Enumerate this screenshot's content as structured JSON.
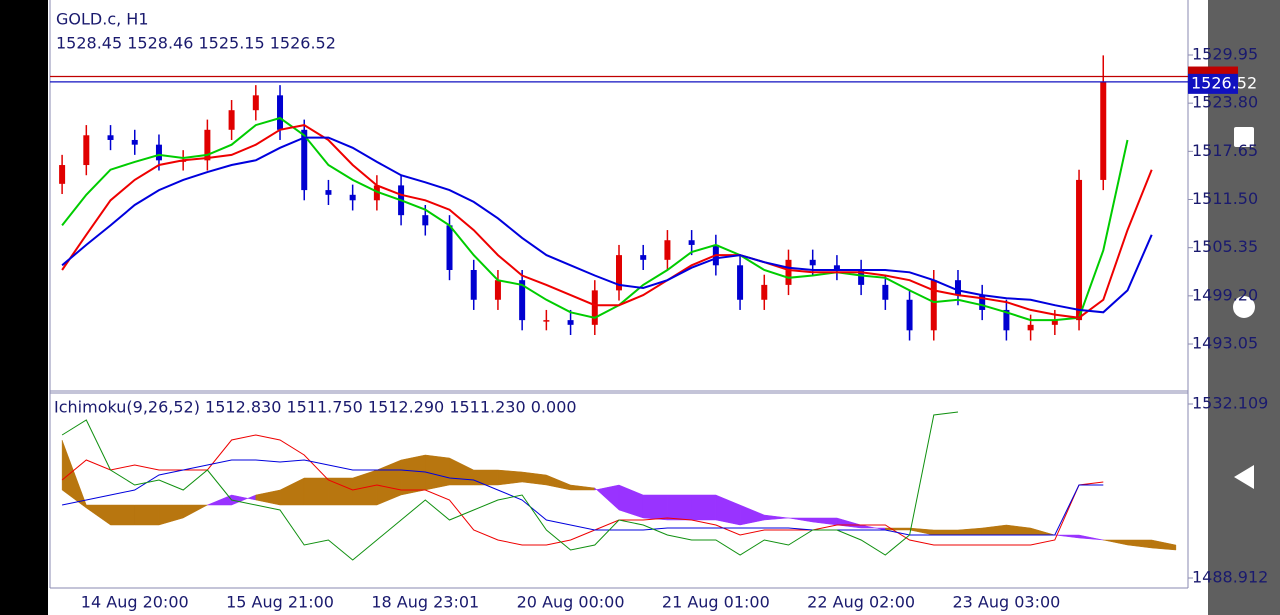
{
  "chart_data": [
    {
      "type": "candlestick",
      "symbol_title": "GOLD.c, H1",
      "ohlc_text": "1528.45 1528.46 1525.15 1526.52",
      "categories": [
        null,
        null,
        null,
        "14 Aug 20:00",
        null,
        null,
        null,
        null,
        null,
        "15 Aug 21:00",
        null,
        null,
        null,
        null,
        null,
        "18 Aug 23:01",
        null,
        null,
        null,
        null,
        null,
        "20 Aug 00:00",
        null,
        null,
        null,
        null,
        null,
        "21 Aug 01:00",
        null,
        null,
        null,
        null,
        null,
        "22 Aug 02:00",
        null,
        null,
        null,
        null,
        null,
        "23 Aug 03:00",
        null,
        null,
        null,
        null,
        null,
        null,
        null
      ],
      "open": [
        1513.5,
        1515.9,
        1519.7,
        1519.1,
        1518.5,
        1516.5,
        1516.5,
        1520.4,
        1522.9,
        1524.8,
        1520.4,
        1512.7,
        1512.1,
        1511.4,
        1513.3,
        1509.5,
        1508.2,
        1502.5,
        1498.7,
        1501.2,
        1496.1,
        1496.1,
        1495.5,
        1499.9,
        1504.4,
        1503.8,
        1506.3,
        1505.7,
        1503.1,
        1498.7,
        1500.6,
        1503.8,
        1503.1,
        1502.5,
        1500.6,
        1498.7,
        1494.8,
        1501.2,
        1499.3,
        1497.4,
        1494.8,
        1495.5,
        1496.1,
        1514.0,
        null,
        null,
        null
      ],
      "high": [
        1517.2,
        1521.0,
        1521.0,
        1520.4,
        1519.8,
        1517.8,
        1521.7,
        1524.2,
        1526.1,
        1526.1,
        1521.7,
        1514.0,
        1513.4,
        1514.6,
        1514.6,
        1510.8,
        1509.5,
        1503.8,
        1502.5,
        1502.5,
        1497.4,
        1497.4,
        1501.2,
        1505.7,
        1505.7,
        1507.6,
        1507.6,
        1507.0,
        1504.4,
        1501.9,
        1505.1,
        1505.1,
        1504.4,
        1503.8,
        1501.9,
        1500.0,
        1502.5,
        1502.5,
        1500.6,
        1498.7,
        1496.8,
        1497.4,
        1515.3,
        1529.9,
        null,
        null,
        null
      ],
      "low": [
        1512.2,
        1514.6,
        1517.8,
        1517.2,
        1515.2,
        1515.2,
        1515.2,
        1519.1,
        1521.6,
        1519.1,
        1511.4,
        1510.8,
        1510.1,
        1510.1,
        1508.2,
        1506.9,
        1501.2,
        1497.4,
        1497.4,
        1494.8,
        1494.8,
        1494.2,
        1494.2,
        1498.6,
        1502.5,
        1502.5,
        1504.4,
        1501.8,
        1497.4,
        1497.4,
        1499.3,
        1501.8,
        1501.2,
        1499.3,
        1497.4,
        1493.5,
        1493.5,
        1498.0,
        1496.1,
        1493.5,
        1493.5,
        1494.2,
        1494.8,
        1512.7,
        null,
        null,
        null
      ],
      "close": [
        1515.9,
        1519.7,
        1519.1,
        1518.5,
        1516.5,
        1516.5,
        1520.4,
        1522.9,
        1524.8,
        1520.4,
        1512.7,
        1512.1,
        1511.4,
        1513.3,
        1509.5,
        1508.2,
        1502.5,
        1498.7,
        1501.2,
        1496.1,
        1496.1,
        1495.5,
        1499.9,
        1504.4,
        1503.8,
        1506.3,
        1505.7,
        1503.1,
        1498.7,
        1500.6,
        1503.8,
        1503.1,
        1502.5,
        1500.6,
        1498.7,
        1494.8,
        1501.2,
        1499.3,
        1497.4,
        1494.8,
        1495.5,
        1496.1,
        1514.0,
        1526.52,
        null,
        null,
        null
      ],
      "up_color": "#e00000",
      "down_color": "#0000d0",
      "series": [
        {
          "color": "#00cc00",
          "values": [
            1508.2,
            1512.1,
            1515.3,
            1516.3,
            1517.2,
            1516.8,
            1517.2,
            1518.5,
            1521.0,
            1521.9,
            1519.7,
            1515.9,
            1514.0,
            1512.5,
            1511.4,
            1510.2,
            1508.2,
            1504.4,
            1501.2,
            1500.6,
            1498.7,
            1497.1,
            1496.4,
            1498.0,
            1500.6,
            1502.5,
            1504.8,
            1505.7,
            1504.4,
            1502.5,
            1501.5,
            1501.8,
            1502.2,
            1501.8,
            1501.5,
            1499.9,
            1498.4,
            1498.7,
            1498.0,
            1497.1,
            1496.1,
            1496.1,
            1496.4,
            1505.0,
            1519.1,
            null,
            null
          ]
        },
        {
          "color": "#ee0000",
          "values": [
            1502.5,
            1507.0,
            1511.4,
            1514.0,
            1515.9,
            1516.5,
            1516.8,
            1517.2,
            1518.5,
            1520.4,
            1521.0,
            1519.1,
            1515.9,
            1513.3,
            1512.1,
            1511.4,
            1510.2,
            1507.6,
            1504.4,
            1501.8,
            1500.6,
            1499.3,
            1498.0,
            1498.0,
            1499.3,
            1501.2,
            1503.1,
            1504.4,
            1504.4,
            1503.5,
            1502.5,
            1502.2,
            1502.2,
            1502.2,
            1501.8,
            1501.2,
            1499.9,
            1499.3,
            1498.9,
            1498.4,
            1497.4,
            1496.8,
            1496.4,
            1498.7,
            1507.6,
            1515.3,
            null
          ]
        },
        {
          "color": "#0000dd",
          "values": [
            1503.1,
            1505.7,
            1508.2,
            1510.8,
            1512.7,
            1514.0,
            1515.0,
            1515.9,
            1516.5,
            1518.1,
            1519.4,
            1519.4,
            1518.1,
            1516.3,
            1514.6,
            1513.7,
            1512.7,
            1511.2,
            1509.1,
            1506.6,
            1504.4,
            1503.1,
            1501.8,
            1500.6,
            1500.2,
            1501.2,
            1502.8,
            1504.0,
            1504.4,
            1503.5,
            1502.8,
            1502.5,
            1502.5,
            1502.5,
            1502.5,
            1502.2,
            1501.2,
            1499.9,
            1499.3,
            1498.9,
            1498.7,
            1498.0,
            1497.4,
            1497.1,
            1499.9,
            1507.0,
            null
          ]
        }
      ],
      "ask_line": 1527.2,
      "ask_color": "#c00000",
      "last_price": 1526.52,
      "last_color": "#1010c0",
      "ylim": [
        1487.18,
        1536.97
      ],
      "yticks": [
        1529.95,
        {
          "value": 1523.8,
          "label": "1523.80"
        },
        1517.65,
        {
          "value": 1511.5,
          "label": "1511.50"
        },
        1505.35,
        {
          "value": 1499.2,
          "label": "1499.20"
        },
        1493.05
      ]
    },
    {
      "type": "ichimoku",
      "title": "Ichimoku(9,26,52) 1512.830 1511.750 1512.290 1511.230 0.000",
      "series": [
        {
          "color": "#ee0000",
          "values": [
            1513.24,
            1518.21,
            1515.72,
            1516.97,
            1515.72,
            1515.72,
            1515.72,
            1523.17,
            1524.41,
            1523.17,
            1519.45,
            1513.24,
            1510.76,
            1512.0,
            1510.76,
            1510.76,
            1508.28,
            1500.83,
            1498.35,
            1497.1,
            1497.1,
            1498.35,
            1500.83,
            1503.31,
            1503.31,
            1503.81,
            1503.31,
            1502.07,
            1499.58,
            1500.83,
            1500.83,
            1500.83,
            1502.07,
            1502.07,
            1502.07,
            1498.35,
            1497.1,
            1497.1,
            1497.1,
            1497.1,
            1497.1,
            1498.35,
            1512.0,
            1512.74,
            null,
            null,
            null
          ]
        },
        {
          "color": "#0000dd",
          "values": [
            1507.03,
            1508.28,
            1509.52,
            1510.76,
            1514.48,
            1515.72,
            1516.97,
            1518.21,
            1518.21,
            1517.71,
            1518.21,
            1516.97,
            1515.72,
            1515.72,
            1515.72,
            1515.23,
            1513.74,
            1513.24,
            1510.76,
            1508.28,
            1503.31,
            1502.07,
            1500.83,
            1500.83,
            1500.83,
            1501.32,
            1501.32,
            1501.32,
            1501.32,
            1501.32,
            1501.32,
            1500.83,
            1500.83,
            1500.83,
            1500.83,
            1499.58,
            1499.58,
            1499.58,
            1499.58,
            1499.58,
            1499.58,
            1499.58,
            1512.0,
            1512.0,
            null,
            null,
            null
          ]
        },
        {
          "color": "#109010",
          "values": [
            1524.41,
            1528.14,
            1515.72,
            1512.0,
            1513.24,
            1510.76,
            1515.72,
            1508.28,
            1507.03,
            1505.79,
            1497.1,
            1498.35,
            1493.38,
            1498.35,
            1503.31,
            1508.28,
            1503.31,
            1505.79,
            1508.28,
            1509.52,
            1500.83,
            1495.86,
            1497.1,
            1503.31,
            1502.07,
            1499.58,
            1498.35,
            1498.35,
            1494.62,
            1498.35,
            1497.1,
            1500.83,
            1500.83,
            1498.35,
            1494.62,
            1499.58,
            1529.38,
            1530.12,
            null,
            null,
            null,
            null,
            null,
            null,
            null,
            null,
            null
          ]
        },
        {
          "color": "#b8760f",
          "values": [
            1523.17,
            1507.03,
            1507.03,
            1507.03,
            1507.03,
            1507.03,
            1507.03,
            1507.03,
            1509.52,
            1510.76,
            1513.74,
            1513.74,
            1513.74,
            1515.72,
            1518.21,
            1519.45,
            1518.7,
            1515.72,
            1515.72,
            1515.23,
            1514.48,
            1512.0,
            1511.26,
            1505.79,
            1503.81,
            1503.31,
            1503.31,
            1503.31,
            1502.07,
            1503.31,
            1503.81,
            1502.81,
            1502.07,
            1501.32,
            1501.32,
            1501.32,
            1500.83,
            1500.83,
            1501.32,
            1502.07,
            1501.32,
            1499.58,
            1498.84,
            1498.35,
            1498.35,
            1498.35,
            1497.1
          ]
        },
        {
          "color": "#9933ff",
          "values": [
            1510.76,
            1506.29,
            1502.07,
            1502.07,
            1502.07,
            1503.81,
            1507.03,
            1509.52,
            1508.28,
            1507.03,
            1507.03,
            1507.03,
            1507.03,
            1507.03,
            1509.52,
            1510.76,
            1512.0,
            1512.0,
            1512.0,
            1512.74,
            1512.0,
            1510.76,
            1510.76,
            1512.0,
            1509.52,
            1509.52,
            1509.52,
            1509.52,
            1507.03,
            1504.55,
            1503.81,
            1503.81,
            1503.81,
            1502.07,
            1500.83,
            1500.83,
            1499.58,
            1499.58,
            1499.58,
            1499.58,
            1499.58,
            1499.58,
            1499.58,
            1498.35,
            1497.1,
            1496.36,
            1495.86
          ]
        }
      ],
      "ylim": [
        1486.43,
        1534.84
      ],
      "yticks": [
        1532.109,
        1488.912
      ]
    }
  ]
}
